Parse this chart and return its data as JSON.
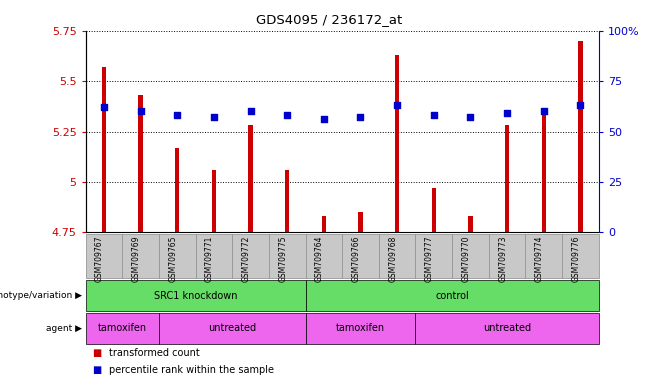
{
  "title": "GDS4095 / 236172_at",
  "samples": [
    "GSM709767",
    "GSM709769",
    "GSM709765",
    "GSM709771",
    "GSM709772",
    "GSM709775",
    "GSM709764",
    "GSM709766",
    "GSM709768",
    "GSM709777",
    "GSM709770",
    "GSM709773",
    "GSM709774",
    "GSM709776"
  ],
  "transformed_count": [
    5.57,
    5.43,
    5.17,
    5.06,
    5.28,
    5.06,
    4.83,
    4.85,
    5.63,
    4.97,
    4.83,
    5.28,
    5.33,
    5.7
  ],
  "percentile_rank": [
    62,
    60,
    58,
    57,
    60,
    58,
    56,
    57,
    63,
    58,
    57,
    59,
    60,
    63
  ],
  "ymin": 4.75,
  "ymax": 5.75,
  "yticks": [
    4.75,
    5.0,
    5.25,
    5.5,
    5.75
  ],
  "ytick_labels": [
    "4.75",
    "5",
    "5.25",
    "5.5",
    "5.75"
  ],
  "right_yticks": [
    0,
    25,
    50,
    75,
    100
  ],
  "right_ytick_labels": [
    "0",
    "25",
    "50",
    "75",
    "100%"
  ],
  "bar_color": "#CC0000",
  "dot_color": "#0000CC",
  "genotype_groups": [
    {
      "label": "SRC1 knockdown",
      "start": 0,
      "end": 6
    },
    {
      "label": "control",
      "start": 6,
      "end": 14
    }
  ],
  "agent_groups": [
    {
      "label": "tamoxifen",
      "start": 0,
      "end": 2
    },
    {
      "label": "untreated",
      "start": 2,
      "end": 6
    },
    {
      "label": "tamoxifen",
      "start": 6,
      "end": 9
    },
    {
      "label": "untreated",
      "start": 9,
      "end": 14
    }
  ],
  "grid_color": "black",
  "left_axis_color": "#CC0000",
  "right_axis_color": "#0000CC",
  "background_color": "#FFFFFF",
  "tick_area_bg": "#C8C8C8",
  "green_color": "#66DD66",
  "pink_color": "#EE66EE",
  "bar_width": 0.12
}
